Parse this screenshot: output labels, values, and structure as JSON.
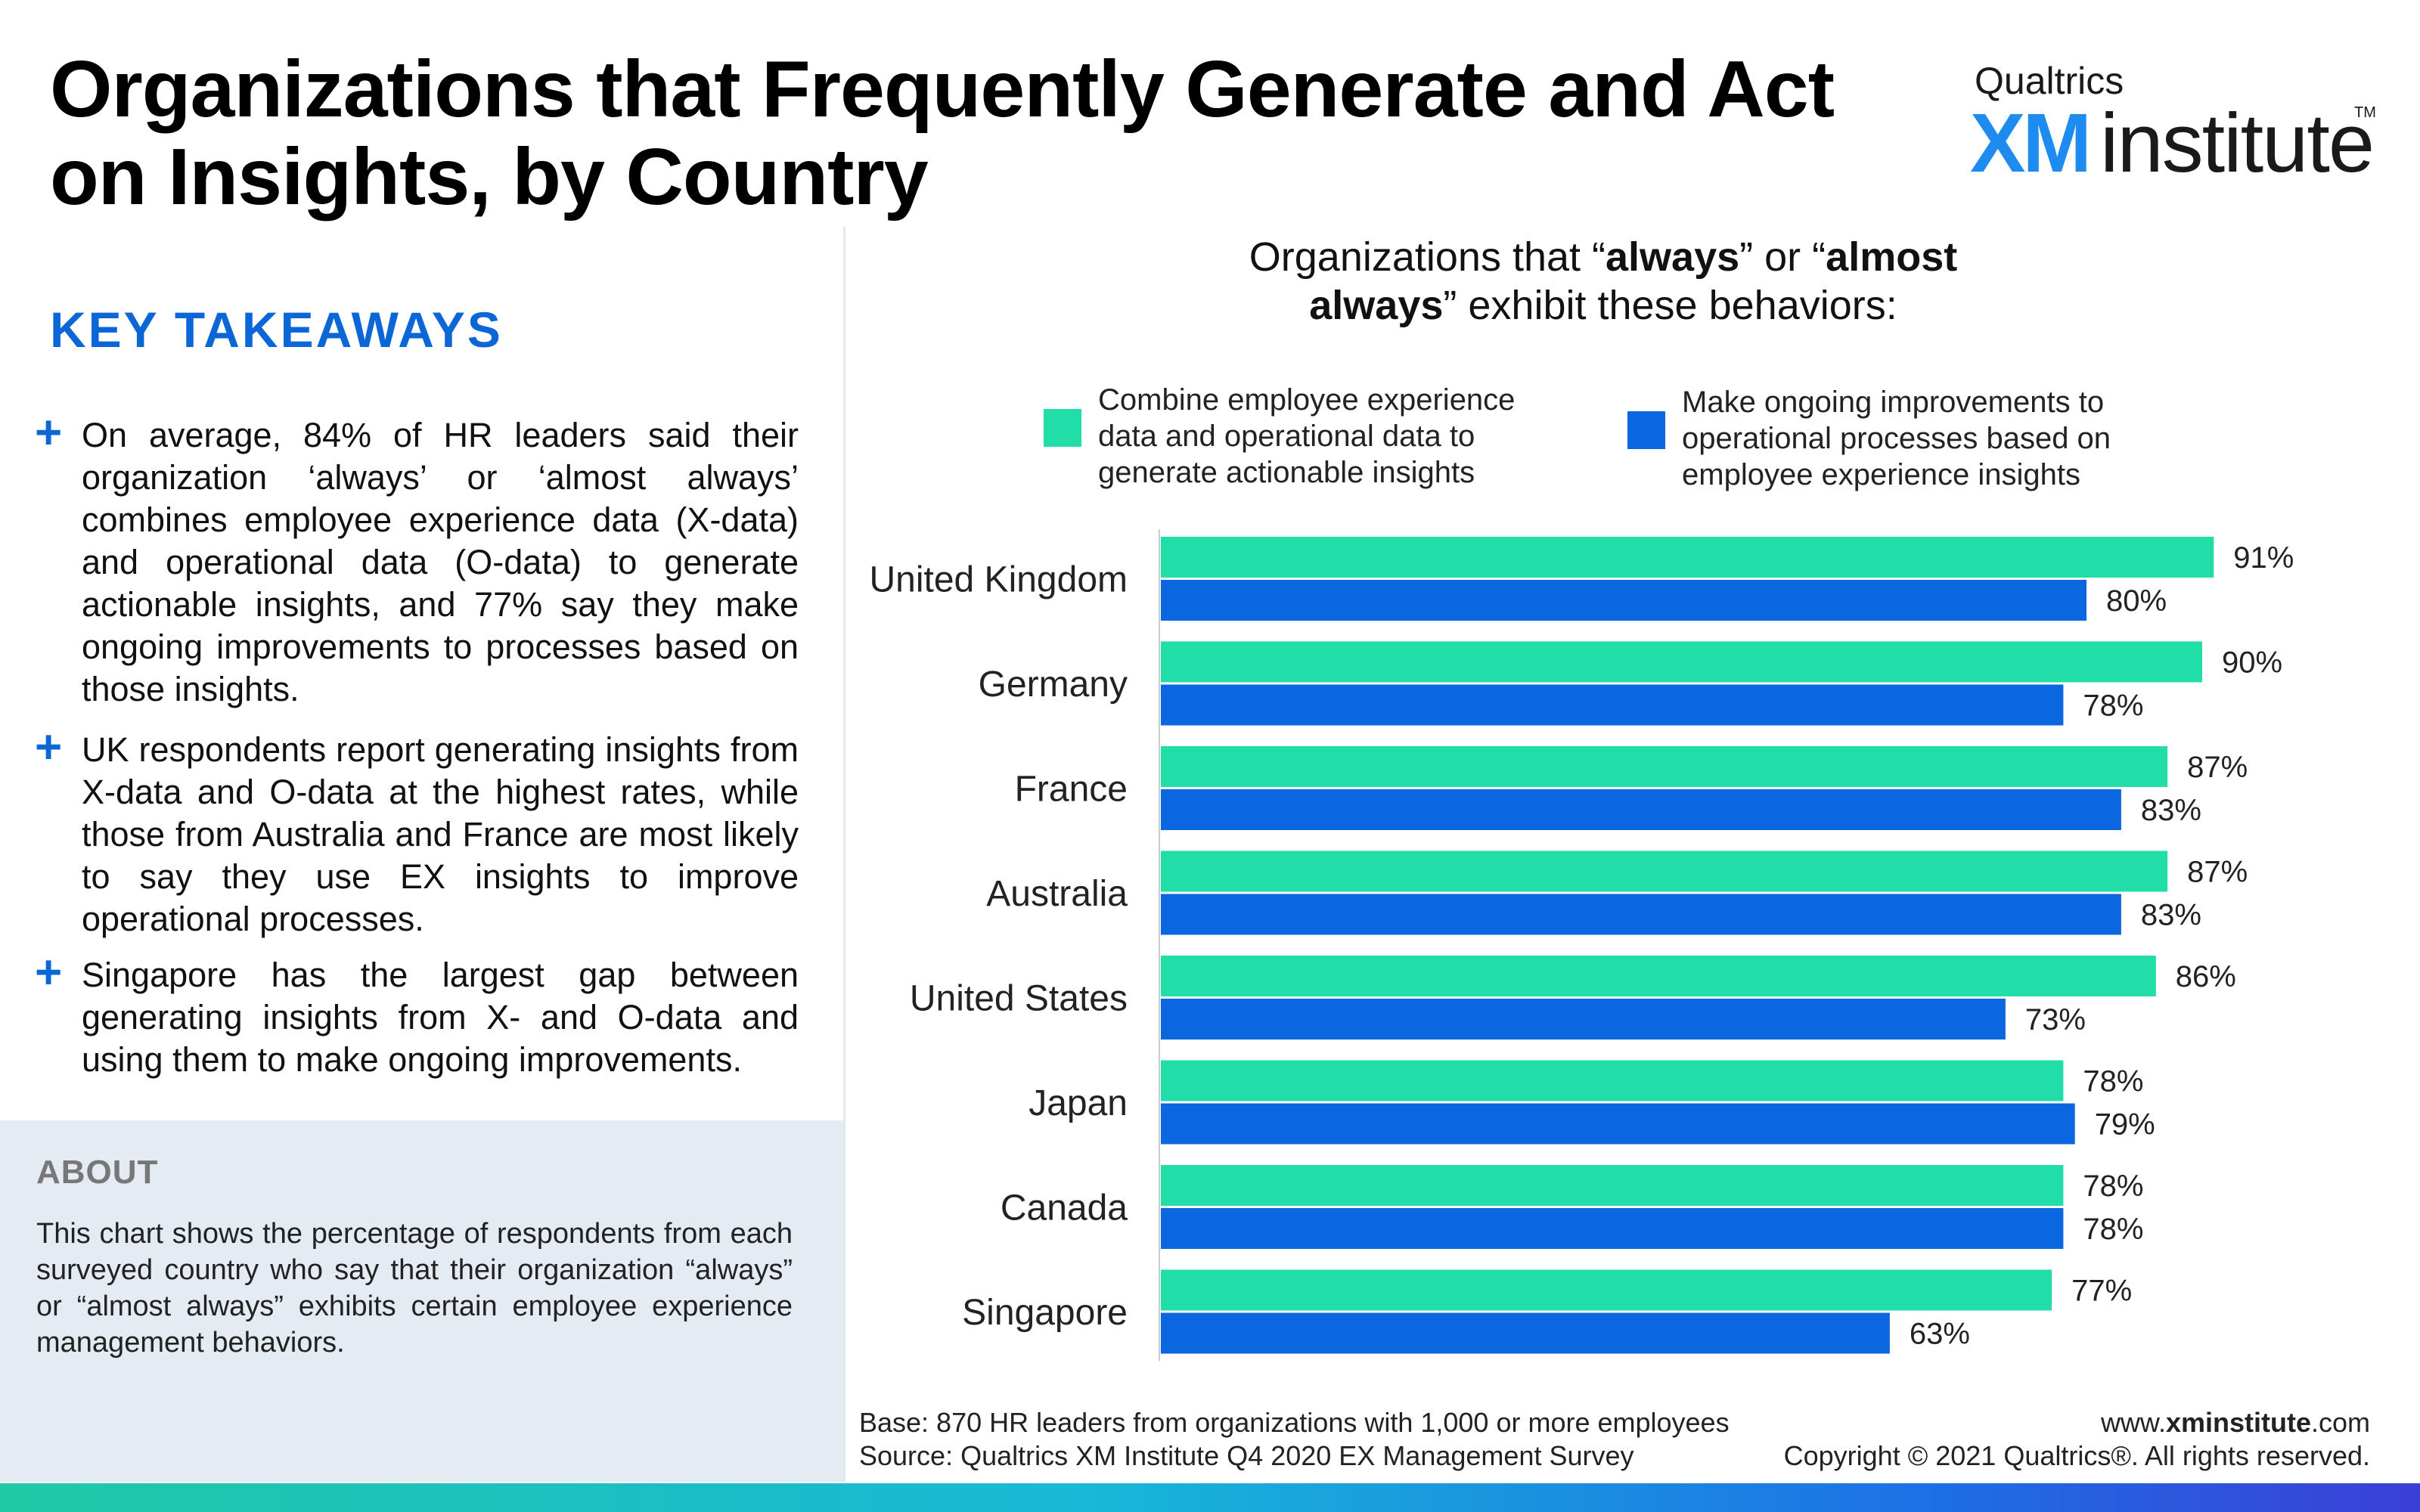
{
  "title": "Organizations that Frequently Generate and Act on Insights, by Country",
  "logo": {
    "brand": "Qualtrics",
    "xm": "XM",
    "institute": "institute",
    "tm": "TM"
  },
  "key_takeaways": {
    "heading": "KEY TAKEAWAYS",
    "items": [
      "On average, 84% of HR leaders said their organization ‘always’ or ‘almost always’ combines employee experience data (X-data) and operational data (O-data) to generate actionable insights, and 77% say they make ongoing improvements to processes based on those insights.",
      "UK respondents  report generating insights from X-data and O-data at the highest rates, while those from Australia and France are most likely to say they use EX insights to improve operational processes.",
      "Singapore has the largest gap between generating insights from X- and O-data and using them to make ongoing improvements."
    ]
  },
  "about": {
    "heading": "ABOUT",
    "text": "This chart shows the percentage of respondents from each surveyed country who say that their organization “always” or “almost always” exhibits certain employee experience management behaviors."
  },
  "chart_subtitle": {
    "prefix": "Organizations that “",
    "bold1": "always",
    "mid": "” or “",
    "bold2": "almost always",
    "suffix": "” exhibit these behaviors:"
  },
  "colors": {
    "series1": "#21dda8",
    "series2": "#0b67e0",
    "accent": "#0b67d6"
  },
  "chart_data": {
    "type": "bar",
    "orientation": "horizontal",
    "categories": [
      "United Kingdom",
      "Germany",
      "France",
      "Australia",
      "United States",
      "Japan",
      "Canada",
      "Singapore"
    ],
    "series": [
      {
        "name": "Combine employee experience data and operational data to generate actionable insights",
        "values": [
          91,
          90,
          87,
          87,
          86,
          78,
          78,
          77
        ]
      },
      {
        "name": "Make ongoing improvements to operational processes based on employee experience insights",
        "values": [
          80,
          78,
          83,
          83,
          73,
          79,
          78,
          63
        ]
      }
    ],
    "value_suffix": "%",
    "xlim": [
      0,
      100
    ],
    "legend_position": "top",
    "grid": false
  },
  "footer": {
    "base": "Base: 870 HR leaders from organizations with 1,000 or more employees",
    "source": "Source: Qualtrics XM Institute Q4 2020 EX Management Survey",
    "website_prefix": "www.",
    "website_bold": "xminstitute",
    "website_suffix": ".com",
    "copyright": "Copyright © 2021 Qualtrics®. All rights reserved."
  }
}
